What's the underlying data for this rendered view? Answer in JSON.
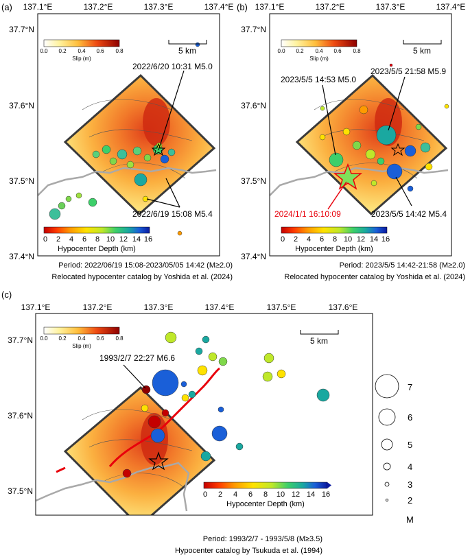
{
  "panels": {
    "a": {
      "label": "(a)",
      "lon_ticks": [
        "137.1°E",
        "137.2°E",
        "137.3°E",
        "137.4°E"
      ],
      "lat_ticks": [
        "37.7°N",
        "37.6°N",
        "37.5°N",
        "37.4°N"
      ],
      "scale_label": "5 km",
      "slip_ticks": [
        "0.0",
        "0.2",
        "0.4",
        "0.6",
        "0.8"
      ],
      "slip_title": "Slip (m)",
      "depth_ticks": [
        "0",
        "2",
        "4",
        "6",
        "8",
        "10",
        "12",
        "14",
        "16"
      ],
      "depth_title": "Hypocenter Depth (km)",
      "annotations": [
        "2022/6/20 10:31 M5.0",
        "2022/6/19 15:08 M5.4"
      ],
      "caption_line1": "Period: 2022/06/19 15:08-2023/05/05 14:42 (M≥2.0)",
      "caption_line2": "Relocated hypocenter catalog by Yoshida et al. (2024)"
    },
    "b": {
      "label": "(b)",
      "lon_ticks": [
        "137.1°E",
        "137.2°E",
        "137.3°E",
        "137.4°E"
      ],
      "lat_ticks": [
        "37.7°N",
        "37.6°N",
        "37.5°N",
        "37.4°N"
      ],
      "scale_label": "5 km",
      "slip_ticks": [
        "0.0",
        "0.2",
        "0.4",
        "0.6",
        "0.8"
      ],
      "slip_title": "Slip (m)",
      "depth_ticks": [
        "0",
        "2",
        "4",
        "6",
        "8",
        "10",
        "12",
        "14",
        "16"
      ],
      "depth_title": "Hypocenter Depth (km)",
      "annotations": [
        "2023/5/5 14:53 M5.0",
        "2023/5/5 21:58 M5.9",
        "2023/5/5 14:42 M5.4"
      ],
      "red_annotation": "2024/1/1 16:10:09",
      "caption_line1": "Period: 2023/5/5 14:42-21:58 (M≥2.0)",
      "caption_line2": "Relocated hypocenter catalog by Yoshida et al. (2024)"
    },
    "c": {
      "label": "(c)",
      "lon_ticks": [
        "137.1°E",
        "137.2°E",
        "137.3°E",
        "137.4°E",
        "137.5°E",
        "137.6°E"
      ],
      "lat_ticks": [
        "37.7°N",
        "37.6°N",
        "37.5°N"
      ],
      "scale_label": "5 km",
      "slip_ticks": [
        "0.0",
        "0.2",
        "0.4",
        "0.6",
        "0.8"
      ],
      "slip_title": "Slip (m)",
      "depth_ticks": [
        "0",
        "2",
        "4",
        "6",
        "8",
        "10",
        "12",
        "14",
        "16"
      ],
      "depth_title": "Hypocenter Depth (km)",
      "annotation": "1993/2/7 22:27 M6.6",
      "caption_line1": "Period: 1993/2/7 - 1993/5/8 (M≥3.5)",
      "caption_line2": "Hypocenter catalog by Tsukuda et al. (1994)"
    }
  },
  "magnitude_legend": {
    "labels": [
      "7",
      "6",
      "5",
      "4",
      "3",
      "2"
    ],
    "title": "M"
  },
  "colors": {
    "red_label": "#e8000b",
    "fault_trace": "#e8000b",
    "coastline": "#a9a9a9",
    "rectangle_outline": "#3a3a3a"
  }
}
